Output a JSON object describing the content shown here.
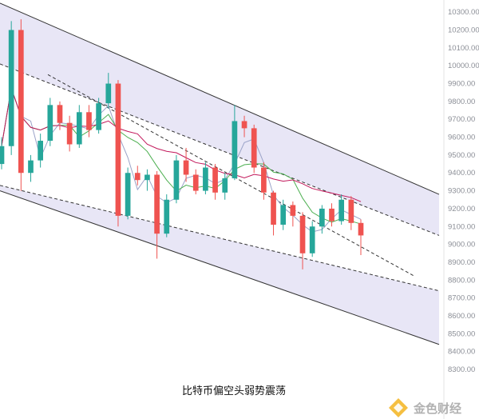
{
  "chart_data": {
    "type": "candlestick",
    "instrument": "BTC",
    "caption": "比特币偏空头弱势震荡",
    "ylim": [
      8300,
      10350
    ],
    "y_ticks": [
      "10300.00",
      "10200.00",
      "10100.00",
      "10000.00",
      "9900.00",
      "9800.00",
      "9700.00",
      "9600.00",
      "9500.00",
      "9400.00",
      "9300.00",
      "9200.00",
      "9100.00",
      "9000.00",
      "8900.00",
      "8800.00",
      "8700.00",
      "8600.00",
      "8500.00",
      "8400.00",
      "8300.00"
    ],
    "y_tick_values": [
      10300,
      10200,
      10100,
      10000,
      9900,
      9800,
      9700,
      9600,
      9500,
      9400,
      9300,
      9200,
      9100,
      9000,
      8900,
      8800,
      8700,
      8600,
      8500,
      8400,
      8300
    ],
    "grid": false,
    "candles_approx": [
      {
        "o": 9450,
        "h": 9600,
        "l": 9420,
        "c": 9550
      },
      {
        "o": 9550,
        "h": 10250,
        "l": 9500,
        "c": 10200
      },
      {
        "o": 10200,
        "h": 10260,
        "l": 9300,
        "c": 9400
      },
      {
        "o": 9400,
        "h": 9500,
        "l": 9350,
        "c": 9470
      },
      {
        "o": 9470,
        "h": 9620,
        "l": 9430,
        "c": 9580
      },
      {
        "o": 9580,
        "h": 9820,
        "l": 9550,
        "c": 9780
      },
      {
        "o": 9780,
        "h": 9800,
        "l": 9640,
        "c": 9680
      },
      {
        "o": 9680,
        "h": 9720,
        "l": 9520,
        "c": 9560
      },
      {
        "o": 9560,
        "h": 9780,
        "l": 9540,
        "c": 9740
      },
      {
        "o": 9740,
        "h": 9780,
        "l": 9600,
        "c": 9640
      },
      {
        "o": 9640,
        "h": 9820,
        "l": 9620,
        "c": 9790
      },
      {
        "o": 9790,
        "h": 9960,
        "l": 9760,
        "c": 9900
      },
      {
        "o": 9900,
        "h": 9920,
        "l": 9100,
        "c": 9160
      },
      {
        "o": 9160,
        "h": 9430,
        "l": 9140,
        "c": 9400
      },
      {
        "o": 9400,
        "h": 9440,
        "l": 9330,
        "c": 9360
      },
      {
        "o": 9360,
        "h": 9420,
        "l": 9300,
        "c": 9390
      },
      {
        "o": 9390,
        "h": 9410,
        "l": 8920,
        "c": 9060
      },
      {
        "o": 9060,
        "h": 9280,
        "l": 9040,
        "c": 9250
      },
      {
        "o": 9250,
        "h": 9500,
        "l": 9230,
        "c": 9470
      },
      {
        "o": 9470,
        "h": 9540,
        "l": 9350,
        "c": 9390
      },
      {
        "o": 9390,
        "h": 9420,
        "l": 9280,
        "c": 9300
      },
      {
        "o": 9300,
        "h": 9460,
        "l": 9280,
        "c": 9430
      },
      {
        "o": 9430,
        "h": 9450,
        "l": 9250,
        "c": 9290
      },
      {
        "o": 9290,
        "h": 9400,
        "l": 9250,
        "c": 9370
      },
      {
        "o": 9370,
        "h": 9780,
        "l": 9360,
        "c": 9690
      },
      {
        "o": 9690,
        "h": 9720,
        "l": 9600,
        "c": 9650
      },
      {
        "o": 9650,
        "h": 9670,
        "l": 9400,
        "c": 9430
      },
      {
        "o": 9430,
        "h": 9460,
        "l": 9250,
        "c": 9290
      },
      {
        "o": 9290,
        "h": 9300,
        "l": 9050,
        "c": 9110
      },
      {
        "o": 9110,
        "h": 9250,
        "l": 9080,
        "c": 9220
      },
      {
        "o": 9220,
        "h": 9240,
        "l": 9100,
        "c": 9160
      },
      {
        "o": 9160,
        "h": 9180,
        "l": 8860,
        "c": 8950
      },
      {
        "o": 8950,
        "h": 9130,
        "l": 8930,
        "c": 9100
      },
      {
        "o": 9100,
        "h": 9220,
        "l": 9060,
        "c": 9200
      },
      {
        "o": 9200,
        "h": 9230,
        "l": 9100,
        "c": 9130
      },
      {
        "o": 9130,
        "h": 9280,
        "l": 9110,
        "c": 9250
      },
      {
        "o": 9250,
        "h": 9270,
        "l": 9080,
        "c": 9120
      },
      {
        "o": 9120,
        "h": 9140,
        "l": 8940,
        "c": 9050
      }
    ],
    "channel": {
      "upper_band": {
        "outer_start": 10350,
        "outer_end": 9280,
        "inner_start": 10010,
        "inner_end": 9050
      },
      "middle_dashed": {
        "start": 9950,
        "end": 8820
      },
      "lower_band": {
        "inner_start": 9330,
        "inner_end": 8740,
        "outer_start": 9300,
        "outer_end": 8440
      }
    },
    "colors": {
      "up": "#26a69a",
      "down": "#ef5350",
      "channel_fill": "#e8e6f6",
      "channel_line": "#333333",
      "ma_fast": "#9aa3c8",
      "ma_mid": "#4caf50",
      "ma_slow": "#c2185b"
    }
  },
  "watermark": {
    "text": "金色财经",
    "color": "#f2a900"
  }
}
